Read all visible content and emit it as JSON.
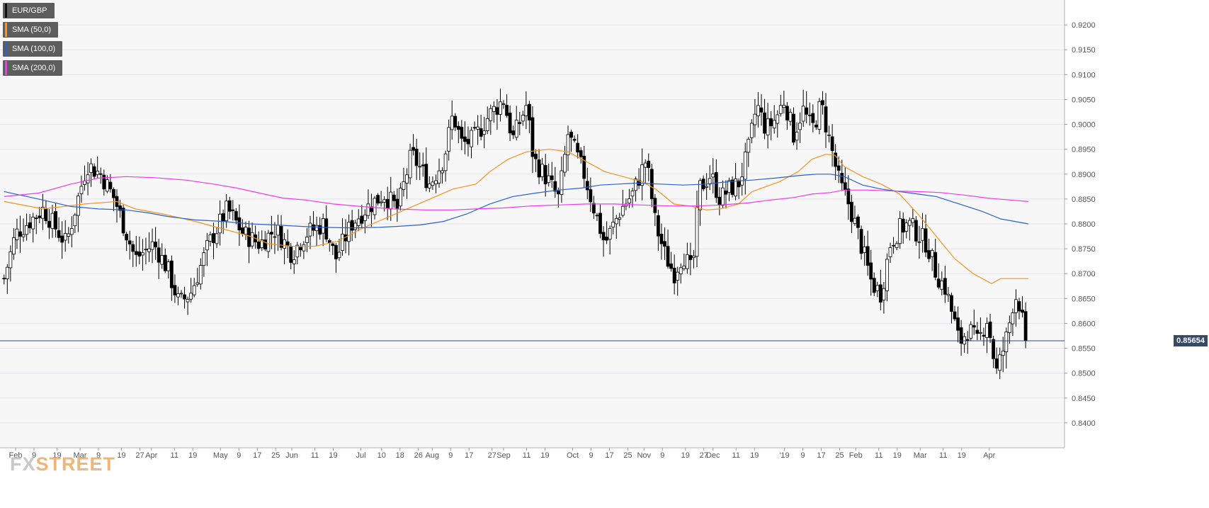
{
  "chart_data": {
    "type": "candlestick",
    "symbol": "EUR/GBP",
    "ylim": [
      0.835,
      0.925
    ],
    "y_ticks": [
      "0.9200",
      "0.9150",
      "0.9100",
      "0.9050",
      "0.9000",
      "0.8950",
      "0.8900",
      "0.8850",
      "0.8800",
      "0.8750",
      "0.8700",
      "0.8650",
      "0.8600",
      "0.8550",
      "0.8500",
      "0.8450",
      "0.8400"
    ],
    "x_ticks": [
      "Feb",
      "9",
      "19",
      "Mar",
      "9",
      "19",
      "27",
      "Apr",
      "11",
      "19",
      "May",
      "9",
      "17",
      "25",
      "Jun",
      "11",
      "19",
      "Jul",
      "10",
      "18",
      "26",
      "Aug",
      "9",
      "17",
      "27",
      "Sep",
      "11",
      "19",
      "Oct",
      "9",
      "17",
      "25",
      "Nov",
      "9",
      "19",
      "27",
      "Dec",
      "11",
      "19",
      "'19",
      "9",
      "17",
      "25",
      "Feb",
      "11",
      "19",
      "Mar",
      "11",
      "19",
      "Apr"
    ],
    "x_tick_days": [
      0,
      8,
      18,
      28,
      36,
      46,
      54,
      59,
      69,
      77,
      89,
      97,
      105,
      113,
      120,
      130,
      138,
      150,
      159,
      167,
      175,
      181,
      189,
      197,
      207,
      212,
      222,
      230,
      242,
      250,
      258,
      266,
      273,
      281,
      291,
      299,
      303,
      313,
      321,
      334,
      342,
      350,
      358,
      365,
      375,
      383,
      393,
      403,
      411,
      423
    ],
    "current_price": "0.85654",
    "last_close": 0.8565,
    "price_points": [
      [
        -5,
        0.869
      ],
      [
        0,
        0.878
      ],
      [
        12,
        0.883
      ],
      [
        22,
        0.876
      ],
      [
        31,
        0.892
      ],
      [
        37,
        0.89
      ],
      [
        43,
        0.885
      ],
      [
        52,
        0.873
      ],
      [
        60,
        0.876
      ],
      [
        66,
        0.871
      ],
      [
        71,
        0.864
      ],
      [
        76,
        0.866
      ],
      [
        84,
        0.876
      ],
      [
        92,
        0.883
      ],
      [
        99,
        0.878
      ],
      [
        106,
        0.876
      ],
      [
        113,
        0.879
      ],
      [
        120,
        0.874
      ],
      [
        126,
        0.878
      ],
      [
        134,
        0.88
      ],
      [
        139,
        0.873
      ],
      [
        146,
        0.88
      ],
      [
        152,
        0.883
      ],
      [
        160,
        0.886
      ],
      [
        166,
        0.883
      ],
      [
        172,
        0.894
      ],
      [
        180,
        0.888
      ],
      [
        186,
        0.893
      ],
      [
        190,
        0.902
      ],
      [
        194,
        0.896
      ],
      [
        199,
        0.897
      ],
      [
        206,
        0.902
      ],
      [
        212,
        0.905
      ],
      [
        216,
        0.897
      ],
      [
        222,
        0.904
      ],
      [
        225,
        0.893
      ],
      [
        231,
        0.889
      ],
      [
        236,
        0.885
      ],
      [
        240,
        0.898
      ],
      [
        247,
        0.89
      ],
      [
        252,
        0.882
      ],
      [
        256,
        0.876
      ],
      [
        263,
        0.883
      ],
      [
        268,
        0.886
      ],
      [
        274,
        0.893
      ],
      [
        278,
        0.88
      ],
      [
        282,
        0.874
      ],
      [
        286,
        0.87
      ],
      [
        290,
        0.874
      ],
      [
        294,
        0.87
      ],
      [
        297,
        0.887
      ],
      [
        302,
        0.89
      ],
      [
        306,
        0.885
      ],
      [
        310,
        0.887
      ],
      [
        314,
        0.888
      ],
      [
        318,
        0.894
      ],
      [
        322,
        0.904
      ],
      [
        326,
        0.899
      ],
      [
        330,
        0.901
      ],
      [
        334,
        0.905
      ],
      [
        338,
        0.898
      ],
      [
        342,
        0.903
      ],
      [
        346,
        0.899
      ],
      [
        350,
        0.904
      ],
      [
        354,
        0.896
      ],
      [
        358,
        0.888
      ],
      [
        362,
        0.884
      ],
      [
        366,
        0.878
      ],
      [
        369,
        0.873
      ],
      [
        372,
        0.868
      ],
      [
        376,
        0.866
      ],
      [
        380,
        0.876
      ],
      [
        384,
        0.879
      ],
      [
        388,
        0.88
      ],
      [
        392,
        0.878
      ],
      [
        396,
        0.876
      ],
      [
        400,
        0.87
      ],
      [
        404,
        0.867
      ],
      [
        408,
        0.86
      ],
      [
        410,
        0.856
      ],
      [
        414,
        0.859
      ],
      [
        418,
        0.856
      ],
      [
        422,
        0.861
      ],
      [
        424,
        0.856
      ],
      [
        426,
        0.85
      ],
      [
        428,
        0.853
      ],
      [
        431,
        0.858
      ],
      [
        434,
        0.866
      ],
      [
        436,
        0.864
      ],
      [
        439,
        0.8565
      ]
    ],
    "sma_lines": {
      "sma50": [
        [
          -5,
          0.8845
        ],
        [
          12,
          0.883
        ],
        [
          30,
          0.884
        ],
        [
          44,
          0.8845
        ],
        [
          52,
          0.883
        ],
        [
          64,
          0.882
        ],
        [
          78,
          0.8805
        ],
        [
          90,
          0.879
        ],
        [
          102,
          0.8775
        ],
        [
          110,
          0.876
        ],
        [
          120,
          0.8755
        ],
        [
          130,
          0.8755
        ],
        [
          140,
          0.8765
        ],
        [
          150,
          0.879
        ],
        [
          160,
          0.881
        ],
        [
          170,
          0.883
        ],
        [
          180,
          0.885
        ],
        [
          190,
          0.887
        ],
        [
          200,
          0.888
        ],
        [
          206,
          0.8905
        ],
        [
          214,
          0.893
        ],
        [
          222,
          0.8945
        ],
        [
          232,
          0.895
        ],
        [
          240,
          0.8945
        ],
        [
          248,
          0.8925
        ],
        [
          256,
          0.8905
        ],
        [
          264,
          0.8895
        ],
        [
          272,
          0.8885
        ],
        [
          278,
          0.887
        ],
        [
          286,
          0.884
        ],
        [
          294,
          0.8835
        ],
        [
          300,
          0.8828
        ],
        [
          306,
          0.883
        ],
        [
          314,
          0.884
        ],
        [
          320,
          0.8865
        ],
        [
          326,
          0.8875
        ],
        [
          332,
          0.8885
        ],
        [
          340,
          0.8905
        ],
        [
          346,
          0.893
        ],
        [
          352,
          0.894
        ],
        [
          356,
          0.8938
        ],
        [
          360,
          0.8915
        ],
        [
          368,
          0.8895
        ],
        [
          376,
          0.888
        ],
        [
          384,
          0.886
        ],
        [
          392,
          0.882
        ],
        [
          400,
          0.8775
        ],
        [
          408,
          0.873
        ],
        [
          416,
          0.87
        ],
        [
          424,
          0.868
        ],
        [
          428,
          0.869
        ],
        [
          434,
          0.869
        ],
        [
          440,
          0.869
        ]
      ],
      "sma100": [
        [
          -5,
          0.8865
        ],
        [
          10,
          0.885
        ],
        [
          24,
          0.8835
        ],
        [
          36,
          0.883
        ],
        [
          48,
          0.8828
        ],
        [
          58,
          0.8822
        ],
        [
          66,
          0.8815
        ],
        [
          78,
          0.8808
        ],
        [
          90,
          0.8805
        ],
        [
          102,
          0.88
        ],
        [
          112,
          0.8798
        ],
        [
          124,
          0.8795
        ],
        [
          134,
          0.8793
        ],
        [
          146,
          0.8792
        ],
        [
          158,
          0.8793
        ],
        [
          166,
          0.8795
        ],
        [
          176,
          0.8798
        ],
        [
          186,
          0.8805
        ],
        [
          196,
          0.882
        ],
        [
          206,
          0.884
        ],
        [
          216,
          0.8855
        ],
        [
          226,
          0.8862
        ],
        [
          236,
          0.8868
        ],
        [
          246,
          0.8872
        ],
        [
          254,
          0.8878
        ],
        [
          262,
          0.888
        ],
        [
          270,
          0.8882
        ],
        [
          280,
          0.888
        ],
        [
          290,
          0.8878
        ],
        [
          300,
          0.888
        ],
        [
          310,
          0.8885
        ],
        [
          320,
          0.8888
        ],
        [
          330,
          0.8892
        ],
        [
          340,
          0.8897
        ],
        [
          348,
          0.89
        ],
        [
          354,
          0.89
        ],
        [
          360,
          0.8895
        ],
        [
          368,
          0.8878
        ],
        [
          376,
          0.887
        ],
        [
          384,
          0.8865
        ],
        [
          392,
          0.886
        ],
        [
          400,
          0.8855
        ],
        [
          410,
          0.884
        ],
        [
          420,
          0.8825
        ],
        [
          428,
          0.881
        ],
        [
          434,
          0.8805
        ],
        [
          440,
          0.88
        ]
      ],
      "sma200": [
        [
          -5,
          0.8855
        ],
        [
          10,
          0.8862
        ],
        [
          24,
          0.888
        ],
        [
          36,
          0.8892
        ],
        [
          48,
          0.8895
        ],
        [
          60,
          0.8893
        ],
        [
          74,
          0.8888
        ],
        [
          86,
          0.888
        ],
        [
          96,
          0.8872
        ],
        [
          106,
          0.8862
        ],
        [
          116,
          0.8852
        ],
        [
          126,
          0.8848
        ],
        [
          138,
          0.884
        ],
        [
          150,
          0.8835
        ],
        [
          164,
          0.883
        ],
        [
          178,
          0.8828
        ],
        [
          190,
          0.8828
        ],
        [
          200,
          0.883
        ],
        [
          212,
          0.8832
        ],
        [
          224,
          0.8836
        ],
        [
          236,
          0.8838
        ],
        [
          248,
          0.884
        ],
        [
          260,
          0.884
        ],
        [
          272,
          0.8838
        ],
        [
          284,
          0.8836
        ],
        [
          296,
          0.8836
        ],
        [
          306,
          0.8838
        ],
        [
          318,
          0.8842
        ],
        [
          328,
          0.8848
        ],
        [
          338,
          0.8853
        ],
        [
          346,
          0.886
        ],
        [
          354,
          0.8863
        ],
        [
          360,
          0.8868
        ],
        [
          370,
          0.8868
        ],
        [
          382,
          0.8866
        ],
        [
          392,
          0.8865
        ],
        [
          402,
          0.8863
        ],
        [
          412,
          0.8858
        ],
        [
          422,
          0.8852
        ],
        [
          432,
          0.8848
        ],
        [
          440,
          0.8845
        ]
      ]
    }
  },
  "legend": [
    {
      "label": "EUR/GBP",
      "color": "#111111"
    },
    {
      "label": "SMA (50,0)",
      "color": "#f7931e"
    },
    {
      "label": "SMA (100,0)",
      "color": "#2a62c9"
    },
    {
      "label": "SMA (200,0)",
      "color": "#ee3aee"
    }
  ],
  "watermark": {
    "prefix": "FX",
    "suffix": "STREET"
  },
  "colors": {
    "background": "#f7f7f8",
    "gridline": "#e3e3e8",
    "up_candle": "#ffffff",
    "down_candle": "#000000",
    "price_line": "#364a63",
    "sma50": "#f7931e",
    "sma100": "#2a62c9",
    "sma200": "#ee3aee"
  }
}
